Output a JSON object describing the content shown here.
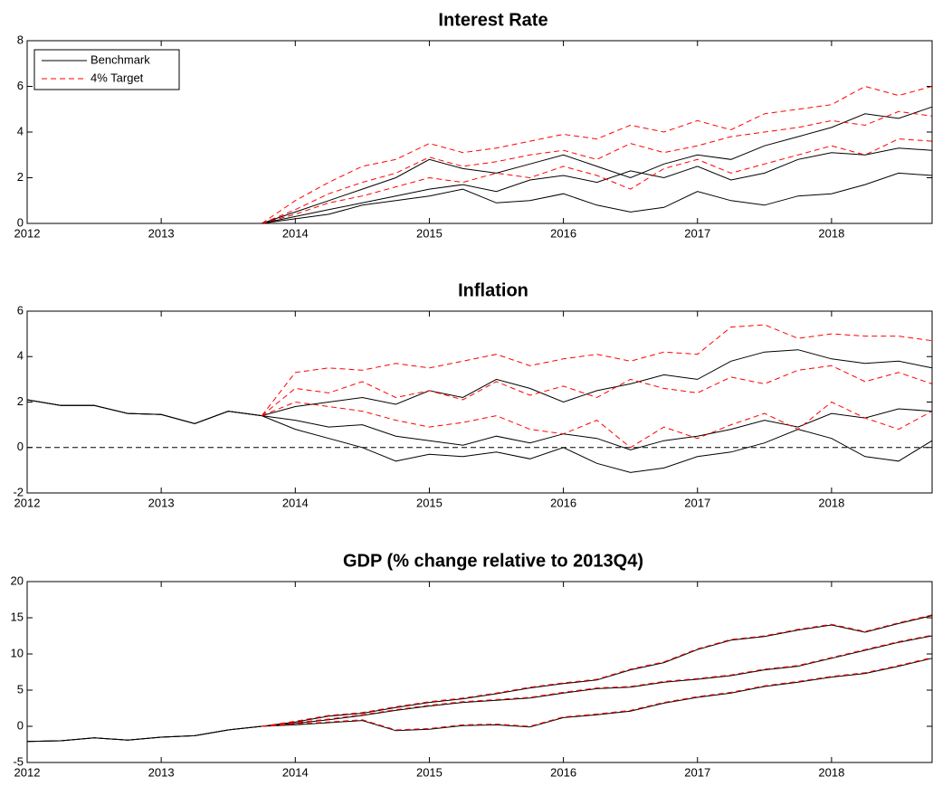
{
  "chart_data": [
    {
      "type": "line",
      "title": "Interest Rate",
      "x": [
        2012,
        2012.25,
        2012.5,
        2012.75,
        2013,
        2013.25,
        2013.5,
        2013.75,
        2014,
        2014.25,
        2014.5,
        2014.75,
        2015,
        2015.25,
        2015.5,
        2015.75,
        2016,
        2016.25,
        2016.5,
        2016.75,
        2017,
        2017.25,
        2017.5,
        2017.75,
        2018,
        2018.25,
        2018.5,
        2018.75
      ],
      "xlim": [
        2012,
        2018.75
      ],
      "xticks": [
        2012,
        2013,
        2014,
        2015,
        2016,
        2017,
        2018
      ],
      "ylim": [
        0,
        8
      ],
      "yticks": [
        0,
        2,
        4,
        6,
        8
      ],
      "legend": "upper left",
      "series": [
        {
          "name": "Benchmark",
          "color": "#000000",
          "linestyle": "solid",
          "values": [
            0,
            0,
            0,
            0,
            0,
            0,
            0,
            0,
            0.5,
            1.0,
            1.5,
            2.0,
            2.8,
            2.4,
            2.2,
            2.6,
            3.0,
            2.5,
            2.0,
            2.6,
            3.0,
            2.8,
            3.4,
            3.8,
            4.2,
            4.8,
            4.6,
            5.1
          ]
        },
        {
          "name": "Benchmark",
          "color": "#000000",
          "linestyle": "solid",
          "values": [
            0,
            0,
            0,
            0,
            0,
            0,
            0,
            0,
            0.3,
            0.6,
            0.9,
            1.2,
            1.5,
            1.7,
            1.4,
            1.9,
            2.1,
            1.8,
            2.3,
            2.0,
            2.5,
            1.9,
            2.2,
            2.8,
            3.1,
            3.0,
            3.3,
            3.2
          ]
        },
        {
          "name": "Benchmark",
          "color": "#000000",
          "linestyle": "solid",
          "values": [
            0,
            0,
            0,
            0,
            0,
            0,
            0,
            0,
            0.2,
            0.4,
            0.8,
            1.0,
            1.2,
            1.5,
            0.9,
            1.0,
            1.3,
            0.8,
            0.5,
            0.7,
            1.4,
            1.0,
            0.8,
            1.2,
            1.3,
            1.7,
            2.2,
            2.1
          ]
        },
        {
          "name": "4% Target",
          "color": "#ff0000",
          "linestyle": "dashed",
          "values": [
            null,
            null,
            null,
            null,
            null,
            null,
            null,
            0,
            1.0,
            1.8,
            2.5,
            2.8,
            3.5,
            3.1,
            3.3,
            3.6,
            3.9,
            3.7,
            4.3,
            4.0,
            4.5,
            4.1,
            4.8,
            5.0,
            5.2,
            6.0,
            5.6,
            6.0
          ]
        },
        {
          "name": "4% Target",
          "color": "#ff0000",
          "linestyle": "dashed",
          "values": [
            null,
            null,
            null,
            null,
            null,
            null,
            null,
            0,
            0.6,
            1.3,
            1.8,
            2.2,
            2.9,
            2.5,
            2.7,
            3.0,
            3.2,
            2.8,
            3.5,
            3.1,
            3.4,
            3.8,
            4.0,
            4.2,
            4.5,
            4.3,
            4.9,
            4.7
          ]
        },
        {
          "name": "4% Target",
          "color": "#ff0000",
          "linestyle": "dashed",
          "values": [
            null,
            null,
            null,
            null,
            null,
            null,
            null,
            0,
            0.4,
            0.9,
            1.2,
            1.6,
            2.0,
            1.8,
            2.2,
            2.0,
            2.5,
            2.1,
            1.5,
            2.4,
            2.8,
            2.2,
            2.6,
            3.0,
            3.4,
            3.0,
            3.7,
            3.6
          ]
        }
      ]
    },
    {
      "type": "line",
      "title": "Inflation",
      "x": [
        2012,
        2012.25,
        2012.5,
        2012.75,
        2013,
        2013.25,
        2013.5,
        2013.75,
        2014,
        2014.25,
        2014.5,
        2014.75,
        2015,
        2015.25,
        2015.5,
        2015.75,
        2016,
        2016.25,
        2016.5,
        2016.75,
        2017,
        2017.25,
        2017.5,
        2017.75,
        2018,
        2018.25,
        2018.5,
        2018.75
      ],
      "xlim": [
        2012,
        2018.75
      ],
      "xticks": [
        2012,
        2013,
        2014,
        2015,
        2016,
        2017,
        2018
      ],
      "ylim": [
        -2,
        6
      ],
      "yticks": [
        -2,
        0,
        2,
        4,
        6
      ],
      "hline": 0,
      "series": [
        {
          "name": "Benchmark",
          "color": "#000000",
          "linestyle": "solid",
          "values": [
            2.1,
            1.85,
            1.85,
            1.5,
            1.45,
            1.05,
            1.6,
            1.4,
            1.8,
            2.0,
            2.2,
            1.9,
            2.5,
            2.2,
            3.0,
            2.6,
            2.0,
            2.5,
            2.8,
            3.2,
            3.0,
            3.8,
            4.2,
            4.3,
            3.9,
            3.7,
            3.8,
            3.5
          ]
        },
        {
          "name": "Benchmark",
          "color": "#000000",
          "linestyle": "solid",
          "values": [
            2.1,
            1.85,
            1.85,
            1.5,
            1.45,
            1.05,
            1.6,
            1.4,
            1.2,
            0.9,
            1.0,
            0.5,
            0.3,
            0.1,
            0.5,
            0.2,
            0.6,
            0.4,
            -0.1,
            0.3,
            0.5,
            0.8,
            1.2,
            0.9,
            1.5,
            1.3,
            1.7,
            1.6
          ]
        },
        {
          "name": "Benchmark",
          "color": "#000000",
          "linestyle": "solid",
          "values": [
            2.1,
            1.85,
            1.85,
            1.5,
            1.45,
            1.05,
            1.6,
            1.4,
            0.8,
            0.4,
            0.0,
            -0.6,
            -0.3,
            -0.4,
            -0.2,
            -0.5,
            0.0,
            -0.7,
            -1.1,
            -0.9,
            -0.4,
            -0.2,
            0.2,
            0.8,
            0.4,
            -0.4,
            -0.6,
            0.3
          ]
        },
        {
          "name": "4% Target",
          "color": "#ff0000",
          "linestyle": "dashed",
          "values": [
            null,
            null,
            null,
            null,
            null,
            null,
            null,
            1.4,
            3.3,
            3.5,
            3.4,
            3.7,
            3.5,
            3.8,
            4.1,
            3.6,
            3.9,
            4.1,
            3.8,
            4.2,
            4.1,
            5.3,
            5.4,
            4.8,
            5.0,
            4.9,
            4.9,
            4.7
          ]
        },
        {
          "name": "4% Target",
          "color": "#ff0000",
          "linestyle": "dashed",
          "values": [
            null,
            null,
            null,
            null,
            null,
            null,
            null,
            1.4,
            2.6,
            2.4,
            2.9,
            2.2,
            2.5,
            2.1,
            2.9,
            2.3,
            2.7,
            2.2,
            3.0,
            2.6,
            2.4,
            3.1,
            2.8,
            3.4,
            3.6,
            2.9,
            3.3,
            2.8
          ]
        },
        {
          "name": "4% Target",
          "color": "#ff0000",
          "linestyle": "dashed",
          "values": [
            null,
            null,
            null,
            null,
            null,
            null,
            null,
            1.4,
            2.0,
            1.8,
            1.6,
            1.2,
            0.9,
            1.1,
            1.4,
            0.8,
            0.6,
            1.2,
            0.0,
            0.9,
            0.4,
            1.0,
            1.5,
            0.8,
            2.0,
            1.3,
            0.8,
            1.6
          ]
        }
      ]
    },
    {
      "type": "line",
      "title": "GDP (% change relative to 2013Q4)",
      "x": [
        2012,
        2012.25,
        2012.5,
        2012.75,
        2013,
        2013.25,
        2013.5,
        2013.75,
        2014,
        2014.25,
        2014.5,
        2014.75,
        2015,
        2015.25,
        2015.5,
        2015.75,
        2016,
        2016.25,
        2016.5,
        2016.75,
        2017,
        2017.25,
        2017.5,
        2017.75,
        2018,
        2018.25,
        2018.5,
        2018.75
      ],
      "xlim": [
        2012,
        2018.75
      ],
      "xticks": [
        2012,
        2013,
        2014,
        2015,
        2016,
        2017,
        2018
      ],
      "ylim": [
        -5,
        20
      ],
      "yticks": [
        -5,
        0,
        5,
        10,
        15,
        20
      ],
      "series": [
        {
          "name": "Benchmark",
          "color": "#000000",
          "linestyle": "solid",
          "values": [
            -2.1,
            -2.0,
            -1.6,
            -1.9,
            -1.5,
            -1.3,
            -0.5,
            0,
            0.6,
            1.4,
            1.8,
            2.6,
            3.3,
            3.8,
            4.5,
            5.3,
            5.9,
            6.4,
            7.8,
            8.8,
            10.6,
            11.9,
            12.4,
            13.3,
            14.0,
            13.0,
            14.2,
            15.3
          ]
        },
        {
          "name": "Benchmark",
          "color": "#000000",
          "linestyle": "solid",
          "values": [
            -2.1,
            -2.0,
            -1.6,
            -1.9,
            -1.5,
            -1.3,
            -0.5,
            0,
            0.4,
            0.9,
            1.5,
            2.2,
            2.8,
            3.3,
            3.6,
            3.9,
            4.6,
            5.2,
            5.4,
            6.1,
            6.5,
            7.0,
            7.8,
            8.3,
            9.4,
            10.5,
            11.6,
            12.5
          ]
        },
        {
          "name": "Benchmark",
          "color": "#000000",
          "linestyle": "solid",
          "values": [
            -2.1,
            -2.0,
            -1.6,
            -1.9,
            -1.5,
            -1.3,
            -0.5,
            0,
            0.2,
            0.5,
            0.8,
            -0.6,
            -0.4,
            0.1,
            0.2,
            -0.1,
            1.2,
            1.6,
            2.1,
            3.2,
            4.0,
            4.6,
            5.5,
            6.1,
            6.8,
            7.3,
            8.3,
            9.4
          ]
        },
        {
          "name": "4% Target",
          "color": "#ff0000",
          "linestyle": "dashed",
          "values": [
            null,
            null,
            null,
            null,
            null,
            null,
            null,
            0,
            0.7,
            1.5,
            1.9,
            2.7,
            3.4,
            3.9,
            4.6,
            5.4,
            6.0,
            6.5,
            7.9,
            8.9,
            10.7,
            12.0,
            12.5,
            13.4,
            14.1,
            13.1,
            14.3,
            15.4
          ]
        },
        {
          "name": "4% Target",
          "color": "#ff0000",
          "linestyle": "dashed",
          "values": [
            null,
            null,
            null,
            null,
            null,
            null,
            null,
            0,
            0.5,
            1.0,
            1.6,
            2.3,
            2.9,
            3.4,
            3.7,
            4.0,
            4.7,
            5.3,
            5.5,
            6.2,
            6.6,
            7.1,
            7.9,
            8.4,
            9.5,
            10.6,
            11.7,
            12.6
          ]
        },
        {
          "name": "4% Target",
          "color": "#ff0000",
          "linestyle": "dashed",
          "values": [
            null,
            null,
            null,
            null,
            null,
            null,
            null,
            0,
            0.3,
            0.6,
            0.9,
            -0.5,
            -0.3,
            0.2,
            0.3,
            0.0,
            1.3,
            1.7,
            2.2,
            3.3,
            4.1,
            4.7,
            5.6,
            6.2,
            6.9,
            7.4,
            8.4,
            9.5
          ]
        }
      ]
    }
  ]
}
